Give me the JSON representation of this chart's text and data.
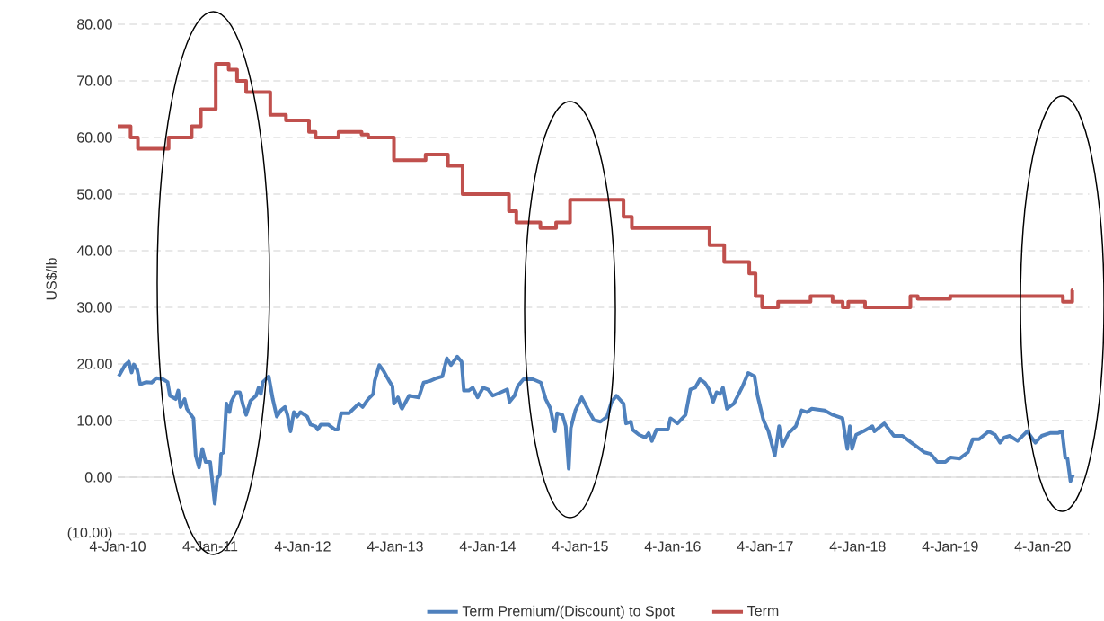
{
  "chart_data": {
    "type": "line",
    "ylabel": "US$/lb",
    "xlim": [
      "2010-01-04",
      "2020-07-06"
    ],
    "ylim": [
      -10,
      80
    ],
    "xticks": [
      {
        "value": "2010-01-04",
        "label": "4-Jan-10"
      },
      {
        "value": "2011-01-04",
        "label": "4-Jan-11"
      },
      {
        "value": "2012-01-04",
        "label": "4-Jan-12"
      },
      {
        "value": "2013-01-04",
        "label": "4-Jan-13"
      },
      {
        "value": "2014-01-04",
        "label": "4-Jan-14"
      },
      {
        "value": "2015-01-04",
        "label": "4-Jan-15"
      },
      {
        "value": "2016-01-04",
        "label": "4-Jan-16"
      },
      {
        "value": "2017-01-04",
        "label": "4-Jan-17"
      },
      {
        "value": "2018-01-04",
        "label": "4-Jan-18"
      },
      {
        "value": "2019-01-04",
        "label": "4-Jan-19"
      },
      {
        "value": "2020-01-04",
        "label": "4-Jan-20"
      }
    ],
    "yticks": [
      {
        "value": -10,
        "label": "(10.00)"
      },
      {
        "value": 0,
        "label": "0.00"
      },
      {
        "value": 10,
        "label": "10.00"
      },
      {
        "value": 20,
        "label": "20.00"
      },
      {
        "value": 30,
        "label": "30.00"
      },
      {
        "value": 40,
        "label": "40.00"
      },
      {
        "value": 50,
        "label": "50.00"
      },
      {
        "value": 60,
        "label": "60.00"
      },
      {
        "value": 70,
        "label": "70.00"
      },
      {
        "value": 80,
        "label": "80.00"
      }
    ],
    "grid": "y",
    "legend": "bottom",
    "series": [
      {
        "name": "Term Premium/(Discount) to Spot",
        "color": "#4f81bd",
        "x": [
          "2010-01-08",
          "2010-02-02",
          "2010-02-17",
          "2010-02-28",
          "2010-03-09",
          "2010-03-22",
          "2010-04-03",
          "2010-04-27",
          "2010-05-18",
          "2010-06-06",
          "2010-07-02",
          "2010-07-20",
          "2010-07-29",
          "2010-08-21",
          "2010-08-31",
          "2010-09-09",
          "2010-09-25",
          "2010-10-04",
          "2010-10-30",
          "2010-11-08",
          "2010-11-21",
          "2010-12-04",
          "2010-12-17",
          "2011-01-04",
          "2011-01-22",
          "2011-02-01",
          "2011-02-11",
          "2011-02-16",
          "2011-02-26",
          "2011-03-09",
          "2011-03-21",
          "2011-03-28",
          "2011-04-16",
          "2011-05-01",
          "2011-05-14",
          "2011-05-26",
          "2011-06-12",
          "2011-07-04",
          "2011-07-14",
          "2011-07-23",
          "2011-07-31",
          "2011-08-23",
          "2011-09-08",
          "2011-09-24",
          "2011-10-10",
          "2011-10-26",
          "2011-11-05",
          "2011-11-17",
          "2011-11-30",
          "2011-12-13",
          "2011-12-26",
          "2012-01-22",
          "2012-02-04",
          "2012-02-24",
          "2012-03-03",
          "2012-03-16",
          "2012-04-14",
          "2012-05-11",
          "2012-05-22",
          "2012-06-04",
          "2012-07-05",
          "2012-08-13",
          "2012-08-28",
          "2012-09-19",
          "2012-10-09",
          "2012-10-15",
          "2012-11-02",
          "2012-11-20",
          "2012-12-11",
          "2012-12-24",
          "2012-12-30",
          "2013-01-15",
          "2013-01-27",
          "2013-01-31",
          "2013-02-28",
          "2013-04-07",
          "2013-04-26",
          "2013-05-22",
          "2013-06-16",
          "2013-07-09",
          "2013-07-27",
          "2013-08-12",
          "2013-09-06",
          "2013-09-23",
          "2013-10-02",
          "2013-10-21",
          "2013-11-06",
          "2013-11-25",
          "2013-12-17",
          "2014-01-05",
          "2014-01-24",
          "2014-02-25",
          "2014-03-22",
          "2014-03-31",
          "2014-04-20",
          "2014-05-03",
          "2014-05-25",
          "2014-07-02",
          "2014-08-02",
          "2014-08-21",
          "2014-09-09",
          "2014-09-26",
          "2014-10-05",
          "2014-10-26",
          "2014-11-08",
          "2014-11-20",
          "2014-11-28",
          "2014-12-16",
          "2015-01-10",
          "2015-02-02",
          "2015-02-27",
          "2015-03-25",
          "2015-04-20",
          "2015-05-08",
          "2015-05-27",
          "2015-06-24",
          "2015-07-04",
          "2015-07-23",
          "2015-07-30",
          "2015-08-24",
          "2015-09-18",
          "2015-10-01",
          "2015-10-14",
          "2015-11-01",
          "2015-12-16",
          "2015-12-26",
          "2016-01-23",
          "2016-02-24",
          "2016-03-14",
          "2016-04-02",
          "2016-04-21",
          "2016-05-10",
          "2016-05-27",
          "2016-06-12",
          "2016-06-26",
          "2016-07-09",
          "2016-07-21",
          "2016-08-06",
          "2016-09-02",
          "2016-10-07",
          "2016-10-29",
          "2016-11-23",
          "2016-12-05",
          "2016-12-28",
          "2017-01-17",
          "2017-02-11",
          "2017-02-28",
          "2017-03-13",
          "2017-04-07",
          "2017-05-05",
          "2017-05-28",
          "2017-06-18",
          "2017-07-07",
          "2017-08-27",
          "2017-09-28",
          "2017-11-05",
          "2017-11-24",
          "2017-12-04",
          "2017-12-13",
          "2017-12-29",
          "2018-01-26",
          "2018-03-03",
          "2018-03-11",
          "2018-04-19",
          "2018-05-27",
          "2018-06-30",
          "2018-08-04",
          "2018-09-24",
          "2018-10-19",
          "2018-11-14",
          "2018-12-16",
          "2019-01-06",
          "2019-02-11",
          "2019-03-15",
          "2019-04-03",
          "2019-04-28",
          "2019-06-05",
          "2019-06-30",
          "2019-07-20",
          "2019-08-05",
          "2019-08-27",
          "2019-09-27",
          "2019-11-04",
          "2019-12-06",
          "2019-12-31",
          "2020-02-02",
          "2020-03-04",
          "2020-03-21",
          "2020-04-02",
          "2020-04-11",
          "2020-04-23",
          "2020-05-03"
        ],
        "values": [
          17.8,
          19.8,
          20.4,
          18.5,
          19.9,
          19.0,
          16.4,
          16.8,
          16.7,
          17.5,
          17.3,
          16.8,
          14.4,
          13.8,
          15.3,
          12.4,
          13.8,
          12.1,
          10.4,
          3.8,
          1.7,
          5.0,
          2.7,
          2.7,
          -4.7,
          -0.2,
          0.4,
          4.1,
          4.4,
          13.0,
          11.5,
          13.3,
          15.0,
          15.0,
          12.7,
          11.0,
          13.5,
          14.4,
          15.8,
          14.7,
          16.8,
          17.8,
          13.8,
          10.7,
          11.8,
          12.4,
          11.0,
          8.1,
          11.5,
          10.7,
          11.5,
          10.7,
          9.3,
          9.0,
          8.4,
          9.3,
          9.3,
          8.4,
          8.4,
          11.3,
          11.3,
          13.0,
          12.4,
          13.8,
          14.7,
          17.0,
          19.8,
          18.7,
          17.0,
          16.1,
          13.0,
          14.1,
          12.4,
          12.1,
          14.4,
          14.1,
          16.7,
          17.0,
          17.5,
          17.8,
          21.0,
          19.8,
          21.3,
          20.4,
          15.3,
          15.3,
          15.8,
          14.1,
          15.8,
          15.5,
          14.4,
          15.0,
          15.5,
          13.3,
          14.4,
          16.1,
          17.3,
          17.3,
          16.7,
          13.8,
          12.1,
          8.1,
          11.3,
          11.0,
          9.0,
          1.5,
          8.7,
          11.8,
          14.1,
          12.1,
          10.1,
          9.8,
          10.7,
          13.3,
          14.4,
          13.0,
          9.5,
          9.8,
          8.4,
          7.5,
          7.0,
          7.8,
          6.4,
          8.4,
          8.4,
          10.4,
          9.5,
          11.0,
          15.5,
          15.8,
          17.3,
          16.7,
          15.5,
          13.3,
          15.0,
          14.7,
          15.8,
          12.1,
          13.0,
          16.1,
          18.4,
          17.8,
          14.4,
          10.1,
          8.1,
          3.8,
          9.0,
          5.5,
          7.8,
          9.0,
          11.8,
          11.5,
          12.1,
          11.8,
          11.0,
          10.4,
          5.0,
          9.0,
          5.0,
          7.5,
          8.1,
          9.0,
          8.1,
          9.5,
          7.3,
          7.3,
          6.1,
          4.4,
          4.1,
          2.7,
          2.7,
          3.5,
          3.3,
          4.4,
          6.7,
          6.7,
          8.1,
          7.5,
          6.1,
          7.0,
          7.3,
          6.4,
          8.1,
          6.1,
          7.3,
          7.8,
          7.8,
          8.1,
          3.5,
          3.3,
          -0.7,
          0.4
        ]
      },
      {
        "name": "Term",
        "type": "step",
        "color": "#c0504d",
        "x": [
          "2010-01-04",
          "2010-02-24",
          "2010-03-25",
          "2010-07-24",
          "2010-10-23",
          "2010-11-28",
          "2011-01-26",
          "2011-03-18",
          "2011-04-20",
          "2011-05-26",
          "2011-08-29",
          "2011-10-30",
          "2012-01-29",
          "2012-02-24",
          "2012-05-25",
          "2012-08-24",
          "2012-09-19",
          "2012-12-30",
          "2013-05-04",
          "2013-07-31",
          "2013-09-27",
          "2014-03-29",
          "2014-04-27",
          "2014-07-31",
          "2014-10-01",
          "2014-11-25",
          "2015-06-24",
          "2015-07-27",
          "2016-05-29",
          "2016-07-26",
          "2016-11-02",
          "2016-11-27",
          "2016-12-23",
          "2017-02-24",
          "2017-07-02",
          "2017-09-27",
          "2017-11-06",
          "2017-11-28",
          "2018-02-02",
          "2018-07-31",
          "2018-08-29",
          "2019-01-04",
          "2020-03-24",
          "2020-04-30",
          "2020-05-03"
        ],
        "values": [
          62,
          60,
          58,
          60,
          62,
          65,
          73,
          72,
          70,
          68,
          64,
          63,
          61,
          60,
          61,
          60.5,
          60,
          56,
          57,
          55,
          50,
          47,
          45,
          44,
          45,
          49,
          46,
          44,
          41,
          38,
          36,
          32,
          30,
          31,
          32,
          31,
          30,
          31,
          30,
          32,
          31.5,
          32,
          31,
          33,
          33
        ]
      }
    ]
  }
}
